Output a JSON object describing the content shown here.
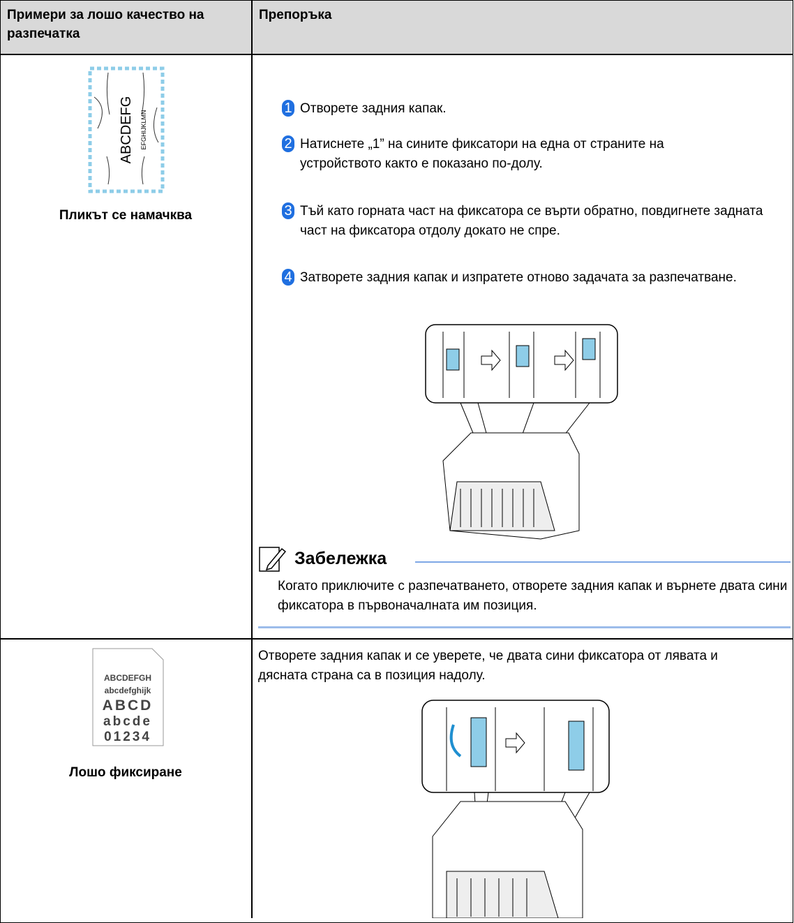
{
  "table": {
    "header": [
      "Примери за лошо качество на разпечатка",
      "Препоръка"
    ],
    "rows": [
      {
        "example": {
          "sample_text": [
            "ABCDEFG",
            "EFGHIJKLMN"
          ],
          "caption": "Пликът се намачква"
        },
        "steps": [
          {
            "number": "1",
            "text": "Отворете задния капак."
          },
          {
            "number": "2",
            "text": "Натиснете „1” на сините фиксатори на една от страните на устройството както е показано по-долу."
          },
          {
            "number": "3",
            "text": "Тъй като горната част на фиксатора се върти обратно, повдигнете задната част на фиксатора отдолу докато не спре."
          },
          {
            "number": "4",
            "text": "Затворете задния капак и изпратете отново задачата за разпечатване."
          }
        ],
        "note": {
          "title": "Забележка",
          "text": "Когато приключите с разпечатването, отворете задния капак и върнете двата сини фиксатора в първоначалната им позиция."
        }
      },
      {
        "example": {
          "sample_text": [
            "ABCDEFGH",
            "abcdefghijk",
            "ABCD",
            "abcde",
            "01234"
          ],
          "caption": "Лошо фиксиране"
        },
        "text": "Отворете задния капак и се уверете, че двата сини фиксатора от лявата и дясната страна са в позиция надолу."
      }
    ]
  }
}
